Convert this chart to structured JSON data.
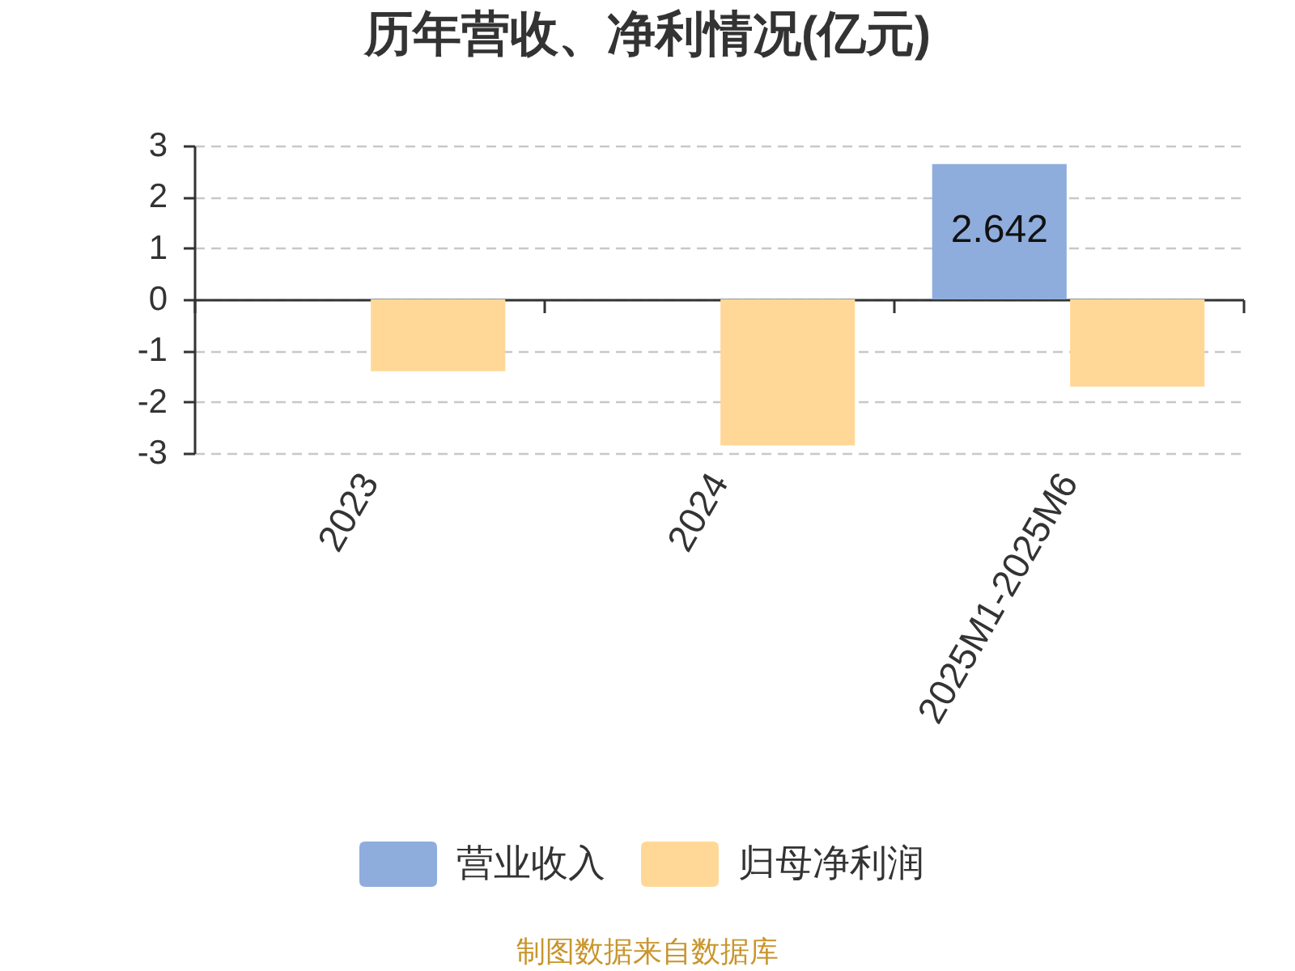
{
  "chart_data": {
    "type": "bar",
    "title": "历年营收、净利情况(亿元)",
    "categories": [
      "2023",
      "2024",
      "2025M1-2025M6"
    ],
    "series": [
      {
        "name": "营业收入",
        "color": "#8faddc",
        "values": [
          null,
          null,
          2.642
        ],
        "value_labels": [
          null,
          null,
          "2.642"
        ]
      },
      {
        "name": "归母净利润",
        "color": "#ffd898",
        "values": [
          -1.4,
          -2.85,
          -1.7
        ]
      }
    ],
    "ylim": [
      -3,
      3
    ],
    "yticks": [
      -3,
      -2,
      -1,
      0,
      1,
      2,
      3
    ],
    "grid": "y",
    "legend": "bottom",
    "annotations": [
      "制图数据来自数据库"
    ]
  }
}
